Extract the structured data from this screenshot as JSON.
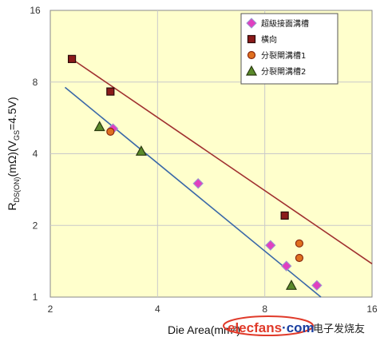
{
  "chart_data": {
    "type": "scatter",
    "xlabel": "Die Area(mm²)",
    "ylabel_parts": {
      "base": "R",
      "sub1": "DS(ON)",
      "mid": "(mΩ)(V",
      "sub2": "GS",
      "end": "=4.5V)"
    },
    "xscale": "log2",
    "yscale": "log2",
    "xlim": [
      2,
      16
    ],
    "ylim": [
      1,
      16
    ],
    "x_ticks": [
      2,
      4,
      8,
      16
    ],
    "y_ticks": [
      1,
      2,
      4,
      8,
      16
    ],
    "x_tick_labels": [
      "2",
      "4",
      "8",
      "16"
    ],
    "y_tick_labels": [
      "1",
      "2",
      "4",
      "8",
      "16"
    ],
    "grid": true,
    "legend_position": "top-right",
    "series": [
      {
        "name": "超級接面溝槽",
        "marker": "diamond",
        "color": "#e040c0",
        "points": [
          [
            3.0,
            5.1
          ],
          [
            5.2,
            3.0
          ],
          [
            8.3,
            1.65
          ],
          [
            9.2,
            1.35
          ],
          [
            11.2,
            1.12
          ]
        ]
      },
      {
        "name": "橫向",
        "marker": "square",
        "color": "#8b1a1a",
        "points": [
          [
            2.3,
            10.0
          ],
          [
            2.95,
            7.3
          ],
          [
            9.1,
            2.2
          ]
        ]
      },
      {
        "name": "分裂閘溝槽1",
        "marker": "circle",
        "color": "#e07020",
        "points": [
          [
            2.95,
            4.95
          ],
          [
            10.0,
            1.68
          ],
          [
            10.0,
            1.46
          ]
        ]
      },
      {
        "name": "分裂閘溝槽2",
        "marker": "triangle",
        "color": "#5a8a2a",
        "points": [
          [
            2.75,
            5.2
          ],
          [
            3.6,
            4.1
          ],
          [
            9.5,
            1.12
          ]
        ]
      }
    ],
    "trendlines": [
      {
        "color": "#a03030",
        "from": [
          2.3,
          10.0
        ],
        "to": [
          16,
          1.38
        ]
      },
      {
        "color": "#3a68a8",
        "from": [
          2.2,
          7.6
        ],
        "to": [
          11.5,
          1.0
        ]
      }
    ]
  },
  "watermark": {
    "site": "elecfans",
    "dotcom": "·com",
    "cn": "电子发烧友"
  }
}
